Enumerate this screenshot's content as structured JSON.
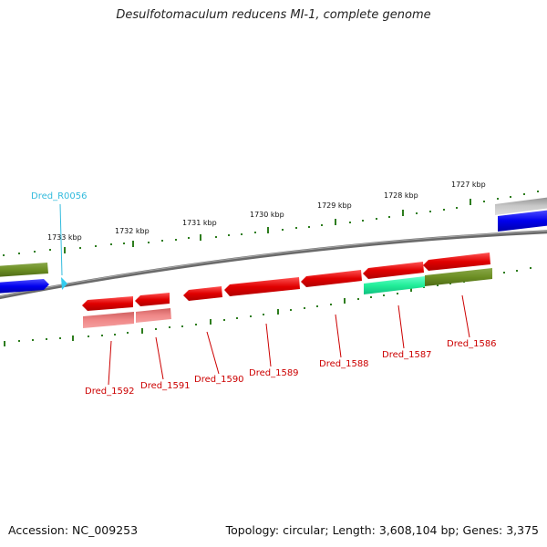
{
  "title": "Desulfotomaculum reducens MI-1, complete genome",
  "footer": {
    "accession": "Accession: NC_009253",
    "summary": "Topology: circular; Length: 3,608,104 bp; Genes: 3,375"
  },
  "colors": {
    "backbone": "#707070",
    "tick": "#2e7d1e",
    "gene_red": "#e00000",
    "gene_pink": "#f08080",
    "gene_olive": "#6b8e23",
    "gene_blue": "#0000ee",
    "gene_teal": "#33ffaa",
    "gene_gray": "#b0b0b0",
    "rna": "#33ccee",
    "label_red": "#cc0000",
    "label_cyan": "#33bbdd"
  },
  "scale_labels": [
    "1727 kbp",
    "1728 kbp",
    "1729 kbp",
    "1730 kbp",
    "1731 kbp",
    "1732 kbp",
    "1733 kbp"
  ],
  "gene_labels": [
    "Dred_1586",
    "Dred_1587",
    "Dred_1588",
    "Dred_1589",
    "Dred_1590",
    "Dred_1591",
    "Dred_1592"
  ],
  "rna_labels": [
    "Dred_R0056"
  ]
}
